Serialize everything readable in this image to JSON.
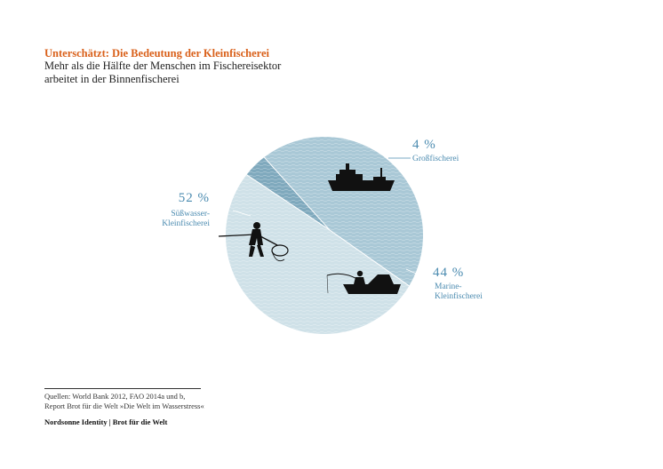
{
  "header": {
    "title": "Unterschätzt: Die Bedeutung der Kleinfischerei",
    "subtitle": "Mehr als die Hälfte der Menschen im Fischereisektor arbeitet in der Binnenfischerei"
  },
  "chart_data": {
    "type": "pie",
    "slices": [
      {
        "label_lines": [
          "Großfischerei"
        ],
        "value": 4,
        "value_text": "4 %",
        "color": "#7fa9bd"
      },
      {
        "label_lines": [
          "Marine-",
          "Kleinfischerei"
        ],
        "value": 44,
        "value_text": "44 %",
        "color": "#a9c8d6"
      },
      {
        "label_lines": [
          "Süßwasser-",
          "Kleinfischerei"
        ],
        "value": 52,
        "value_text": "52 %",
        "color": "#cfe1e8"
      }
    ],
    "label_color": "#4b8bb0"
  },
  "icons": [
    "ship-icon",
    "angler-boat-icon",
    "net-fisher-icon"
  ],
  "footer": {
    "sources": [
      "Quellen: World Bank 2012, FAO 2014a und b,",
      "Report Brot für die Welt »Die Welt im Wasserstress«"
    ],
    "credit": "Nordsonne Identity | Brot für die Welt"
  }
}
